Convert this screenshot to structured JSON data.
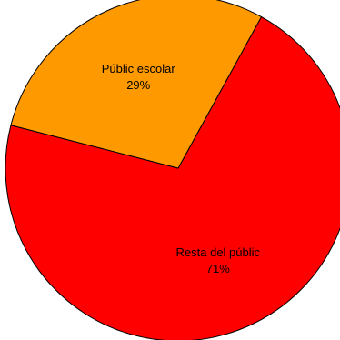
{
  "chart_data": {
    "type": "pie",
    "title": "",
    "slices": [
      {
        "label": "Resta del públic",
        "value": 71,
        "value_label": "71%",
        "color": "#ff0000"
      },
      {
        "label": "Públic escolar",
        "value": 29,
        "value_label": "29%",
        "color": "#ff9900"
      }
    ],
    "border_color": "#000000",
    "legend": "none"
  }
}
